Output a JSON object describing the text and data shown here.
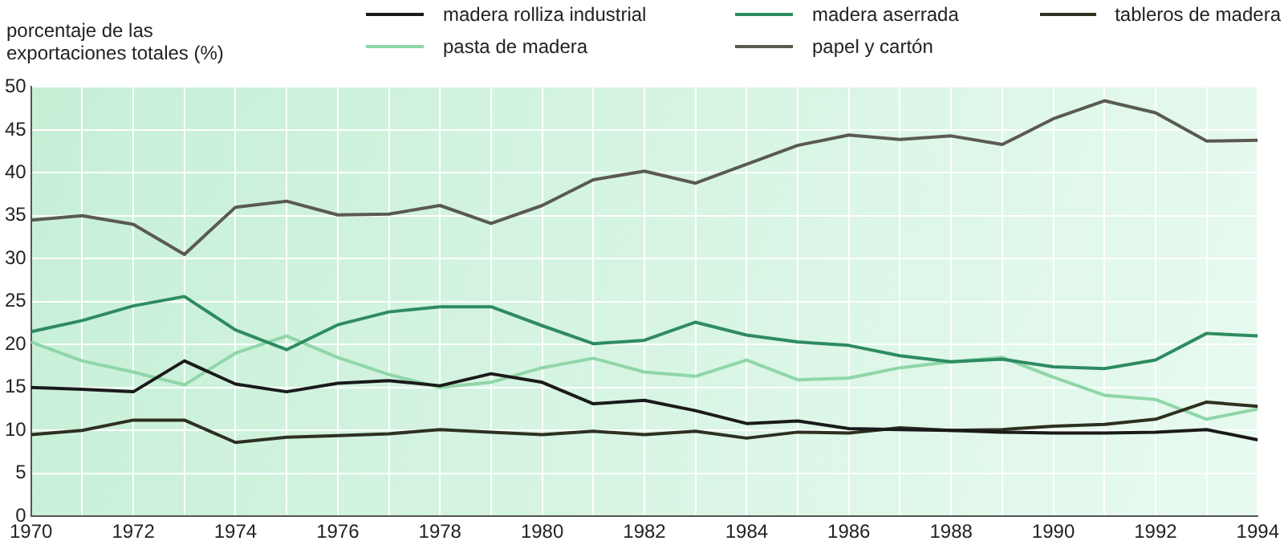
{
  "chart_data": {
    "type": "line",
    "ylabel": "porcentaje de las exportaciones totales (%)",
    "x": [
      1970,
      1971,
      1972,
      1973,
      1974,
      1975,
      1976,
      1977,
      1978,
      1979,
      1980,
      1981,
      1982,
      1983,
      1984,
      1985,
      1986,
      1987,
      1988,
      1989,
      1990,
      1991,
      1992,
      1993,
      1994
    ],
    "series": [
      {
        "name": "madera rolliza industrial",
        "color": "#1a1a1a",
        "values": [
          15,
          14.8,
          14.5,
          18.1,
          15.4,
          14.5,
          15.5,
          15.8,
          15.2,
          16.6,
          15.6,
          13.1,
          13.5,
          12.3,
          10.8,
          11.1,
          10.2,
          10.1,
          10.0,
          9.8,
          9.7,
          9.7,
          9.8,
          10.1,
          8.9
        ]
      },
      {
        "name": "madera aserrada",
        "color": "#2e8b60",
        "values": [
          21.5,
          22.8,
          24.5,
          25.6,
          21.7,
          19.4,
          22.3,
          23.8,
          24.4,
          24.4,
          22.2,
          20.1,
          20.5,
          22.6,
          21.1,
          20.3,
          19.9,
          18.7,
          18.0,
          18.3,
          17.4,
          17.2,
          18.2,
          21.3,
          21.0
        ]
      },
      {
        "name": "tableros de madera",
        "color": "#2e3020",
        "values": [
          9.5,
          10,
          11.2,
          11.2,
          8.6,
          9.2,
          9.4,
          9.6,
          10.1,
          9.8,
          9.5,
          9.9,
          9.5,
          9.9,
          9.1,
          9.8,
          9.7,
          10.3,
          10,
          10.1,
          10.5,
          10.7,
          11.3,
          13.3,
          12.8
        ]
      },
      {
        "name": "pasta de madera",
        "color": "#8fd6a8",
        "values": [
          20.3,
          18.1,
          16.8,
          15.3,
          19,
          21,
          18.5,
          16.5,
          15,
          15.6,
          17.3,
          18.4,
          16.8,
          16.3,
          18.2,
          15.9,
          16.1,
          17.3,
          18.0,
          18.5,
          16.2,
          14.1,
          13.6,
          11.3,
          12.5
        ]
      },
      {
        "name": "papel y cartón",
        "color": "#5a5a50",
        "values": [
          34.5,
          35,
          34,
          30.5,
          36,
          36.7,
          35.1,
          35.2,
          36.2,
          34.1,
          36.2,
          39.2,
          40.2,
          38.8,
          41,
          43.2,
          44.4,
          43.9,
          44.3,
          43.3,
          46.3,
          48.4,
          47,
          43.7,
          43.8
        ]
      }
    ],
    "xlim": [
      1970,
      1994
    ],
    "xticks": [
      1970,
      {
        "value": 1971,
        "label": null
      },
      1972,
      {
        "value": 1973,
        "label": null
      },
      1974,
      {
        "value": 1975,
        "label": null
      },
      1976,
      {
        "value": 1977,
        "label": null
      },
      1978,
      {
        "value": 1979,
        "label": null
      },
      1980,
      {
        "value": 1981,
        "label": null
      },
      1982,
      {
        "value": 1983,
        "label": null
      },
      1984,
      {
        "value": 1985,
        "label": null
      },
      1986,
      {
        "value": 1987,
        "label": null
      },
      1988,
      {
        "value": 1989,
        "label": null
      },
      1990,
      {
        "value": 1991,
        "label": null
      },
      1992,
      {
        "value": 1993,
        "label": null
      },
      1994
    ],
    "ylim": [
      0,
      50
    ],
    "yticks": [
      0,
      5,
      10,
      15,
      20,
      25,
      30,
      35,
      40,
      45,
      50
    ],
    "grid": true,
    "legend": "top",
    "marker": "none",
    "line_style": "solid"
  }
}
